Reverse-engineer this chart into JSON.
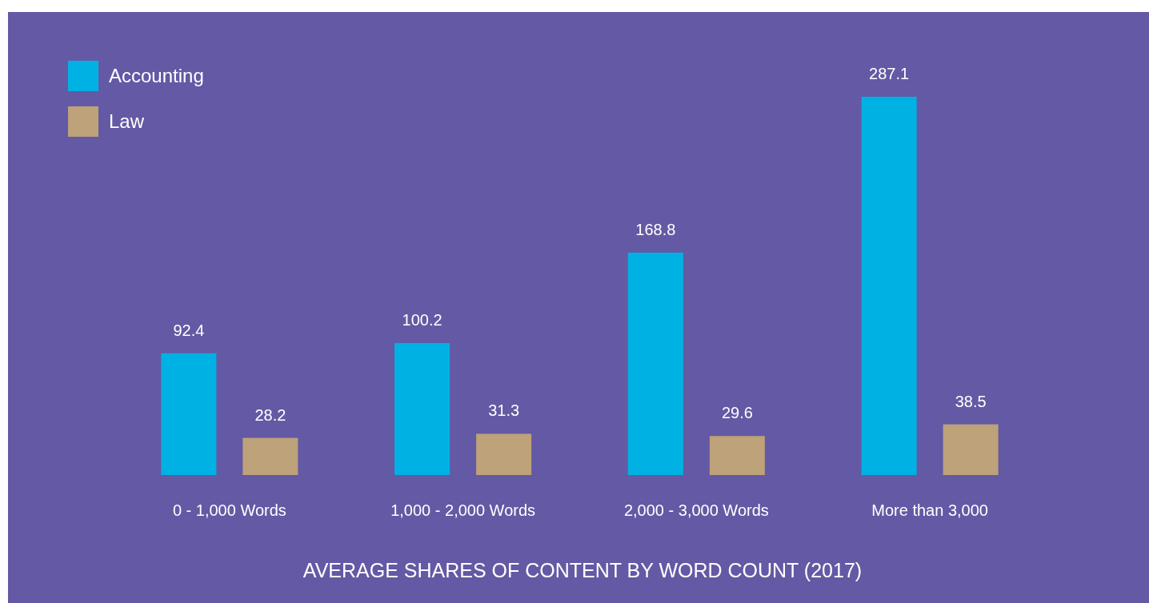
{
  "chart_data": {
    "type": "bar",
    "title": "AVERAGE SHARES OF CONTENT BY WORD COUNT (2017)",
    "categories": [
      "0 - 1,000 Words",
      "1,000 - 2,000 Words",
      "2,000 - 3,000 Words",
      "More than 3,000"
    ],
    "series": [
      {
        "name": "Accounting",
        "color": "#00b2e3",
        "values": [
          92.4,
          100.2,
          168.8,
          287.1
        ]
      },
      {
        "name": "Law",
        "color": "#bda27a",
        "values": [
          28.2,
          31.3,
          29.6,
          38.5
        ]
      }
    ],
    "data_labels": true,
    "legend": "top left"
  }
}
